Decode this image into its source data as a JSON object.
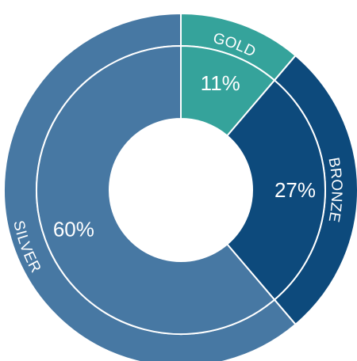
{
  "chart_data": {
    "type": "pie",
    "categories": [
      "GOLD",
      "BRONZE",
      "SILVER"
    ],
    "values": [
      11,
      27,
      60
    ],
    "labels": [
      "11%",
      "27%",
      "60%"
    ],
    "colors": [
      "#35a39b",
      "#0d4a7c",
      "#4778a3"
    ],
    "title": "",
    "legend": "none"
  }
}
